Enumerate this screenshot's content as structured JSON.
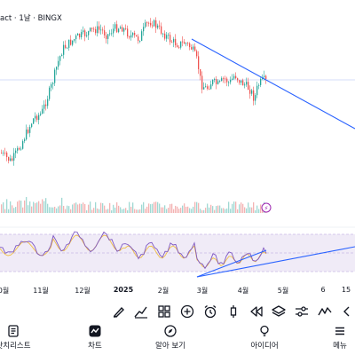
{
  "chart": {
    "title": "act · 1날 · BINGX"
  },
  "time_axis": {
    "labels": [
      "0월",
      "11월",
      "12월",
      "2025",
      "2월",
      "3월",
      "4월",
      "5월",
      "6",
      "15"
    ]
  },
  "indicator_badge": "⚡",
  "toolbar": {
    "tools": [
      "brush-icon",
      "trendline-icon",
      "chart-type-icon",
      "grid-icon",
      "plus-icon",
      "alarm-icon",
      "candle-icon",
      "rewind-icon",
      "layers-icon",
      "adjust-icon",
      "wave-icon",
      "more-icon"
    ]
  },
  "nav": {
    "items": [
      {
        "label": "왓치리스트",
        "icon": "watchlist-icon"
      },
      {
        "label": "차트",
        "icon": "chart-icon"
      },
      {
        "label": "알아 보기",
        "icon": "compass-icon"
      },
      {
        "label": "아이디어",
        "icon": "bulb-icon"
      },
      {
        "label": "메뉴",
        "icon": "menu-icon"
      }
    ]
  },
  "colors": {
    "up": "#26a69a",
    "down": "#ef5350",
    "trendline": "#2962ff",
    "rsi": "#7e57c2",
    "rsi_ma": "#f0c048"
  }
}
